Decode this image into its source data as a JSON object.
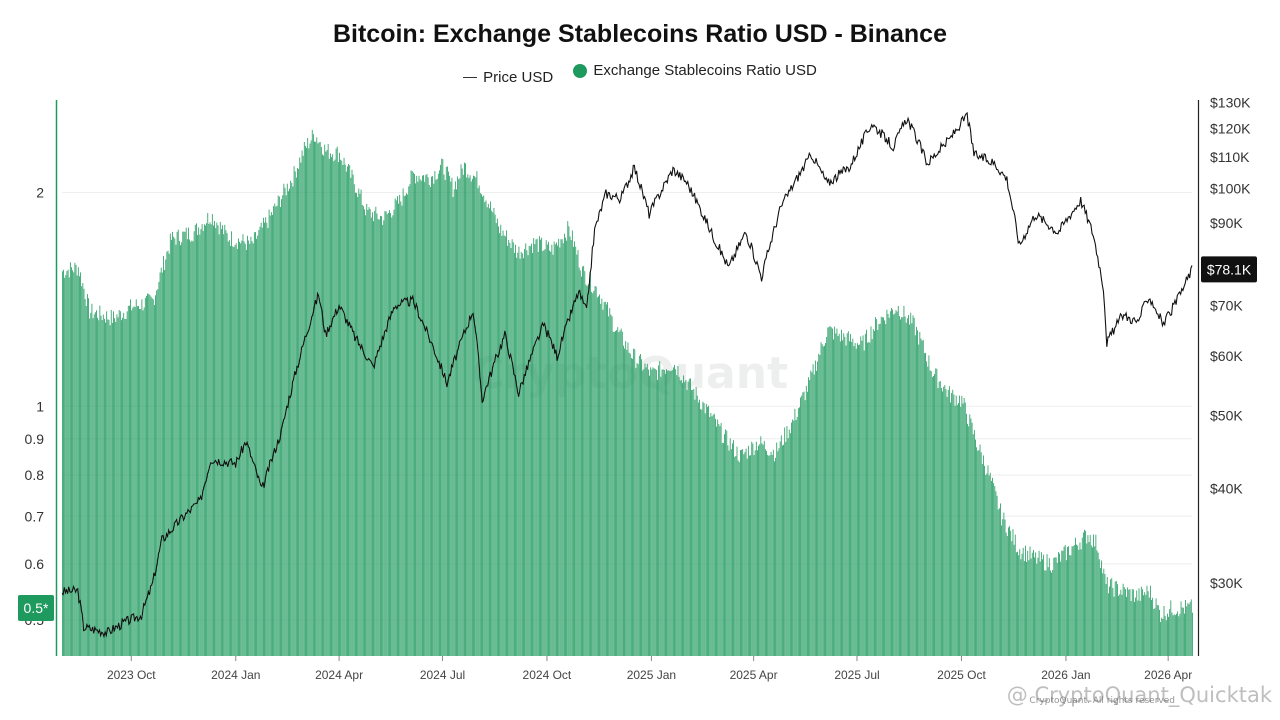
{
  "title": "Bitcoin: Exchange Stablecoins Ratio USD - Binance",
  "legend": {
    "price_label": "Price USD",
    "ratio_label": "Exchange Stablecoins Ratio USD"
  },
  "colors": {
    "ratio": "#1f9a5e",
    "price": "#111111",
    "axis": "#1f9a5e",
    "price_badge": "#111111"
  },
  "watermark": {
    "center": "CryptoQuant",
    "corner": "@ CryptoQuant_Quicktak",
    "sub": "CryptoQuant. All rights reserved"
  },
  "chart_data": {
    "type": "bar",
    "x_range": [
      "2023-08-01",
      "2026-04-22"
    ],
    "x_ticks": [
      {
        "date": "2023-10-01",
        "label": "2023 Oct"
      },
      {
        "date": "2024-01-01",
        "label": "2024 Jan"
      },
      {
        "date": "2024-04-01",
        "label": "2024 Apr"
      },
      {
        "date": "2024-07-01",
        "label": "2024 Jul"
      },
      {
        "date": "2024-10-01",
        "label": "2024 Oct"
      },
      {
        "date": "2025-01-01",
        "label": "2025 Jan"
      },
      {
        "date": "2025-04-01",
        "label": "2025 Apr"
      },
      {
        "date": "2025-07-01",
        "label": "2025 Jul"
      },
      {
        "date": "2025-10-01",
        "label": "2025 Oct"
      },
      {
        "date": "2026-01-01",
        "label": "2026 Jan"
      },
      {
        "date": "2026-04-01",
        "label": "2026 Apr"
      }
    ],
    "left_axis": {
      "scale": "log",
      "range": [
        0.445,
        2.7
      ],
      "ticks": [
        {
          "v": 0.5,
          "label": "0.5"
        },
        {
          "v": 0.6,
          "label": "0.6"
        },
        {
          "v": 0.7,
          "label": "0.7"
        },
        {
          "v": 0.8,
          "label": "0.8"
        },
        {
          "v": 0.9,
          "label": "0.9"
        },
        {
          "v": 1,
          "label": "1"
        },
        {
          "v": 2,
          "label": "2"
        }
      ]
    },
    "right_axis": {
      "scale": "log",
      "range": [
        24000,
        131000
      ],
      "ticks": [
        {
          "v": 30000,
          "label": "$30K"
        },
        {
          "v": 40000,
          "label": "$40K"
        },
        {
          "v": 50000,
          "label": "$50K"
        },
        {
          "v": 60000,
          "label": "$60K"
        },
        {
          "v": 70000,
          "label": "$70K"
        },
        {
          "v": 90000,
          "label": "$90K"
        },
        {
          "v": 100000,
          "label": "$100K"
        },
        {
          "v": 110000,
          "label": "$110K"
        },
        {
          "v": 120000,
          "label": "$120K"
        },
        {
          "v": 130000,
          "label": "$130K"
        }
      ]
    },
    "current_ratio": {
      "value": 0.52,
      "label": "0.5*"
    },
    "current_price": {
      "value": 78100,
      "label": "$78.1K"
    },
    "series": [
      {
        "name": "Exchange Stablecoins Ratio USD",
        "axis": "left",
        "points": [
          [
            "2023-08-01",
            1.55
          ],
          [
            "2023-08-15",
            1.57
          ],
          [
            "2023-08-25",
            1.36
          ],
          [
            "2023-09-15",
            1.33
          ],
          [
            "2023-10-01",
            1.38
          ],
          [
            "2023-10-20",
            1.41
          ],
          [
            "2023-11-05",
            1.72
          ],
          [
            "2023-11-25",
            1.76
          ],
          [
            "2023-12-10",
            1.86
          ],
          [
            "2023-12-25",
            1.73
          ],
          [
            "2024-01-15",
            1.69
          ],
          [
            "2024-02-01",
            1.86
          ],
          [
            "2024-02-20",
            2.1
          ],
          [
            "2024-03-01",
            2.3
          ],
          [
            "2024-03-10",
            2.42
          ],
          [
            "2024-03-20",
            2.29
          ],
          [
            "2024-04-01",
            2.27
          ],
          [
            "2024-04-15",
            2.05
          ],
          [
            "2024-04-25",
            1.88
          ],
          [
            "2024-05-10",
            1.84
          ],
          [
            "2024-05-25",
            1.95
          ],
          [
            "2024-06-05",
            2.12
          ],
          [
            "2024-06-20",
            2.1
          ],
          [
            "2024-07-01",
            2.18
          ],
          [
            "2024-07-10",
            2.03
          ],
          [
            "2024-07-20",
            2.18
          ],
          [
            "2024-08-01",
            2.08
          ],
          [
            "2024-08-20",
            1.78
          ],
          [
            "2024-09-05",
            1.65
          ],
          [
            "2024-09-20",
            1.7
          ],
          [
            "2024-10-05",
            1.66
          ],
          [
            "2024-10-20",
            1.78
          ],
          [
            "2024-11-01",
            1.55
          ],
          [
            "2024-11-15",
            1.45
          ],
          [
            "2024-12-01",
            1.28
          ],
          [
            "2024-12-15",
            1.18
          ],
          [
            "2025-01-01",
            1.11
          ],
          [
            "2025-01-20",
            1.15
          ],
          [
            "2025-02-05",
            1.06
          ],
          [
            "2025-02-20",
            0.98
          ],
          [
            "2025-03-05",
            0.91
          ],
          [
            "2025-03-20",
            0.85
          ],
          [
            "2025-04-05",
            0.89
          ],
          [
            "2025-04-20",
            0.86
          ],
          [
            "2025-05-05",
            0.95
          ],
          [
            "2025-05-20",
            1.08
          ],
          [
            "2025-06-05",
            1.28
          ],
          [
            "2025-06-20",
            1.25
          ],
          [
            "2025-07-05",
            1.22
          ],
          [
            "2025-07-20",
            1.32
          ],
          [
            "2025-08-05",
            1.38
          ],
          [
            "2025-08-20",
            1.3
          ],
          [
            "2025-09-05",
            1.12
          ],
          [
            "2025-09-20",
            1.04
          ],
          [
            "2025-10-01",
            1.02
          ],
          [
            "2025-10-15",
            0.88
          ],
          [
            "2025-10-25",
            0.8
          ],
          [
            "2025-11-05",
            0.7
          ],
          [
            "2025-11-20",
            0.63
          ],
          [
            "2025-12-05",
            0.61
          ],
          [
            "2025-12-20",
            0.6
          ],
          [
            "2026-01-05",
            0.63
          ],
          [
            "2026-01-20",
            0.66
          ],
          [
            "2026-01-28",
            0.64
          ],
          [
            "2026-02-05",
            0.56
          ],
          [
            "2026-02-20",
            0.55
          ],
          [
            "2026-03-05",
            0.54
          ],
          [
            "2026-03-15",
            0.55
          ],
          [
            "2026-03-25",
            0.51
          ],
          [
            "2026-04-05",
            0.52
          ],
          [
            "2026-04-22",
            0.52
          ]
        ]
      },
      {
        "name": "Price USD",
        "axis": "right",
        "points": [
          [
            "2023-08-01",
            29200
          ],
          [
            "2023-08-15",
            29300
          ],
          [
            "2023-08-20",
            26200
          ],
          [
            "2023-09-10",
            25800
          ],
          [
            "2023-09-25",
            26600
          ],
          [
            "2023-10-10",
            27200
          ],
          [
            "2023-10-20",
            30000
          ],
          [
            "2023-10-28",
            34200
          ],
          [
            "2023-11-15",
            36600
          ],
          [
            "2023-12-01",
            38600
          ],
          [
            "2023-12-10",
            43800
          ],
          [
            "2024-01-01",
            43200
          ],
          [
            "2024-01-10",
            46200
          ],
          [
            "2024-01-24",
            39800
          ],
          [
            "2024-02-10",
            47500
          ],
          [
            "2024-02-28",
            61000
          ],
          [
            "2024-03-14",
            72500
          ],
          [
            "2024-03-20",
            64000
          ],
          [
            "2024-04-01",
            70000
          ],
          [
            "2024-04-15",
            63500
          ],
          [
            "2024-05-01",
            58000
          ],
          [
            "2024-05-20",
            70000
          ],
          [
            "2024-06-05",
            71000
          ],
          [
            "2024-06-25",
            60500
          ],
          [
            "2024-07-05",
            55200
          ],
          [
            "2024-07-28",
            69000
          ],
          [
            "2024-08-05",
            52500
          ],
          [
            "2024-08-25",
            64000
          ],
          [
            "2024-09-06",
            53500
          ],
          [
            "2024-09-28",
            66000
          ],
          [
            "2024-10-10",
            60000
          ],
          [
            "2024-10-29",
            73000
          ],
          [
            "2024-11-05",
            68500
          ],
          [
            "2024-11-12",
            88000
          ],
          [
            "2024-11-22",
            98500
          ],
          [
            "2024-12-05",
            97000
          ],
          [
            "2024-12-17",
            106500
          ],
          [
            "2024-12-30",
            92500
          ],
          [
            "2025-01-20",
            106000
          ],
          [
            "2025-02-01",
            102000
          ],
          [
            "2025-02-25",
            86000
          ],
          [
            "2025-03-10",
            78500
          ],
          [
            "2025-03-25",
            87500
          ],
          [
            "2025-04-08",
            76300
          ],
          [
            "2025-04-25",
            94500
          ],
          [
            "2025-05-22",
            111000
          ],
          [
            "2025-06-05",
            101500
          ],
          [
            "2025-06-25",
            107000
          ],
          [
            "2025-07-14",
            122000
          ],
          [
            "2025-08-02",
            113500
          ],
          [
            "2025-08-14",
            124000
          ],
          [
            "2025-09-01",
            108000
          ],
          [
            "2025-09-20",
            116000
          ],
          [
            "2025-10-06",
            125000
          ],
          [
            "2025-10-12",
            111000
          ],
          [
            "2025-10-30",
            108000
          ],
          [
            "2025-11-10",
            103000
          ],
          [
            "2025-11-21",
            84000
          ],
          [
            "2025-12-05",
            92500
          ],
          [
            "2025-12-25",
            87500
          ],
          [
            "2026-01-14",
            96500
          ],
          [
            "2026-01-25",
            87000
          ],
          [
            "2026-02-03",
            74000
          ],
          [
            "2026-02-06",
            62500
          ],
          [
            "2026-02-20",
            68000
          ],
          [
            "2026-03-05",
            66500
          ],
          [
            "2026-03-15",
            72000
          ],
          [
            "2026-03-28",
            66000
          ],
          [
            "2026-04-10",
            71500
          ],
          [
            "2026-04-22",
            78100
          ]
        ]
      }
    ]
  }
}
